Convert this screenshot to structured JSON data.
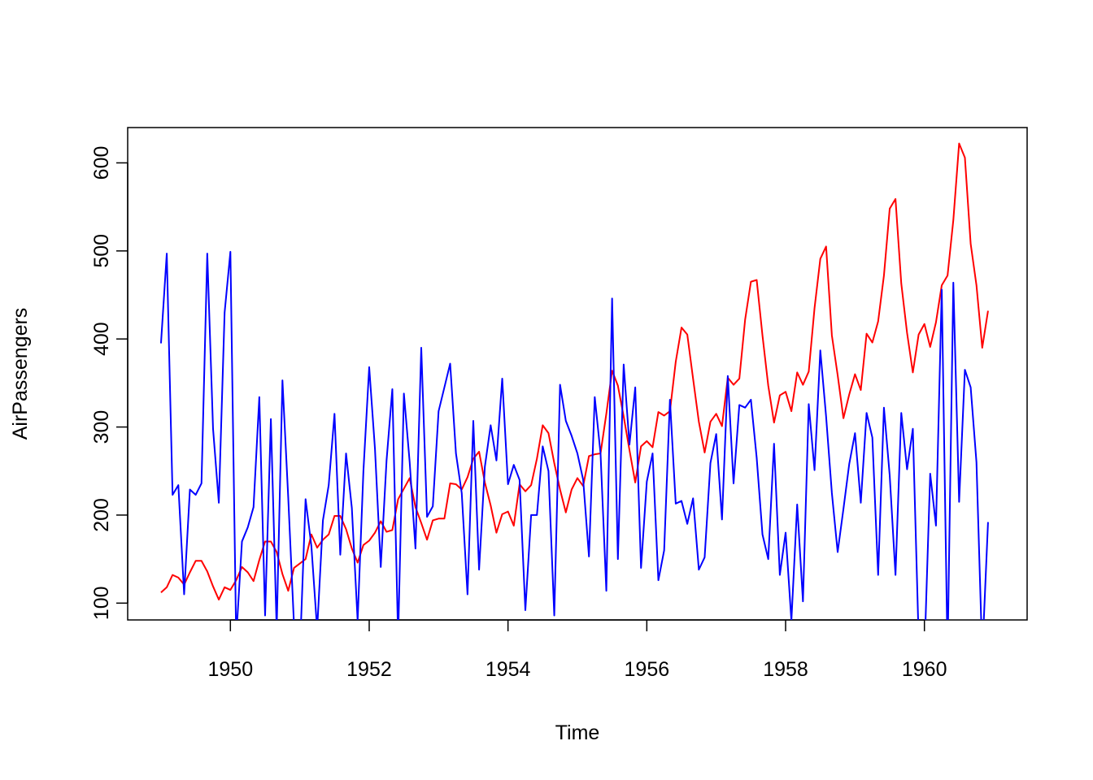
{
  "chart_data": {
    "type": "line",
    "title": "",
    "xlabel": "Time",
    "ylabel": "AirPassengers",
    "xlim": [
      1948.52,
      1961.48
    ],
    "ylim": [
      80.9,
      640.1
    ],
    "x_ticks": [
      1950,
      1952,
      1954,
      1956,
      1958,
      1960
    ],
    "y_ticks": [
      100,
      200,
      300,
      400,
      500,
      600
    ],
    "grid": false,
    "legend": "none",
    "x_start": 1949,
    "x_step": 0.0833333,
    "series": [
      {
        "color": "#ff0000",
        "values": [
          112,
          118,
          132,
          129,
          121,
          135,
          148,
          148,
          136,
          119,
          104,
          118,
          115,
          126,
          141,
          135,
          125,
          149,
          170,
          170,
          158,
          133,
          114,
          140,
          145,
          150,
          178,
          163,
          172,
          178,
          199,
          199,
          184,
          162,
          146,
          166,
          171,
          180,
          193,
          181,
          183,
          218,
          230,
          242,
          209,
          191,
          172,
          194,
          196,
          196,
          236,
          235,
          229,
          243,
          264,
          272,
          237,
          211,
          180,
          201,
          204,
          188,
          235,
          227,
          234,
          264,
          302,
          293,
          259,
          229,
          203,
          229,
          242,
          233,
          267,
          269,
          270,
          315,
          364,
          347,
          312,
          274,
          237,
          278,
          284,
          277,
          317,
          313,
          318,
          374,
          413,
          405,
          355,
          306,
          271,
          306,
          315,
          301,
          356,
          348,
          355,
          422,
          465,
          467,
          404,
          347,
          305,
          336,
          340,
          318,
          362,
          348,
          363,
          435,
          491,
          505,
          404,
          359,
          310,
          337,
          360,
          342,
          406,
          396,
          420,
          472,
          548,
          559,
          463,
          407,
          362,
          405,
          417,
          391,
          419,
          461,
          472,
          535,
          622,
          606,
          508,
          461,
          390,
          432
        ]
      },
      {
        "color": "#0000ff",
        "values": [
          395,
          497,
          223,
          234,
          110,
          229,
          223,
          236,
          497,
          298,
          214,
          430,
          499,
          60,
          170,
          186,
          209,
          334,
          86,
          309,
          70,
          353,
          220,
          75,
          40,
          218,
          165,
          70,
          194,
          234,
          315,
          155,
          270,
          208,
          80,
          250,
          368,
          275,
          141,
          262,
          343,
          60,
          338,
          260,
          162,
          390,
          198,
          210,
          318,
          345,
          372,
          270,
          225,
          110,
          307,
          138,
          255,
          302,
          262,
          355,
          235,
          257,
          240,
          92,
          200,
          200,
          278,
          250,
          86,
          348,
          307,
          290,
          270,
          240,
          153,
          334,
          270,
          114,
          446,
          150,
          371,
          280,
          345,
          140,
          238,
          270,
          126,
          160,
          331,
          213,
          216,
          190,
          219,
          138,
          152,
          259,
          292,
          195,
          358,
          236,
          325,
          322,
          331,
          265,
          178,
          150,
          281,
          132,
          180,
          80,
          212,
          102,
          326,
          251,
          387,
          312,
          225,
          158,
          207,
          258,
          293,
          214,
          316,
          288,
          132,
          322,
          245,
          132,
          316,
          252,
          298,
          60,
          40,
          247,
          188,
          456,
          40,
          464,
          215,
          365,
          345,
          260,
          40,
          192
        ]
      }
    ]
  }
}
